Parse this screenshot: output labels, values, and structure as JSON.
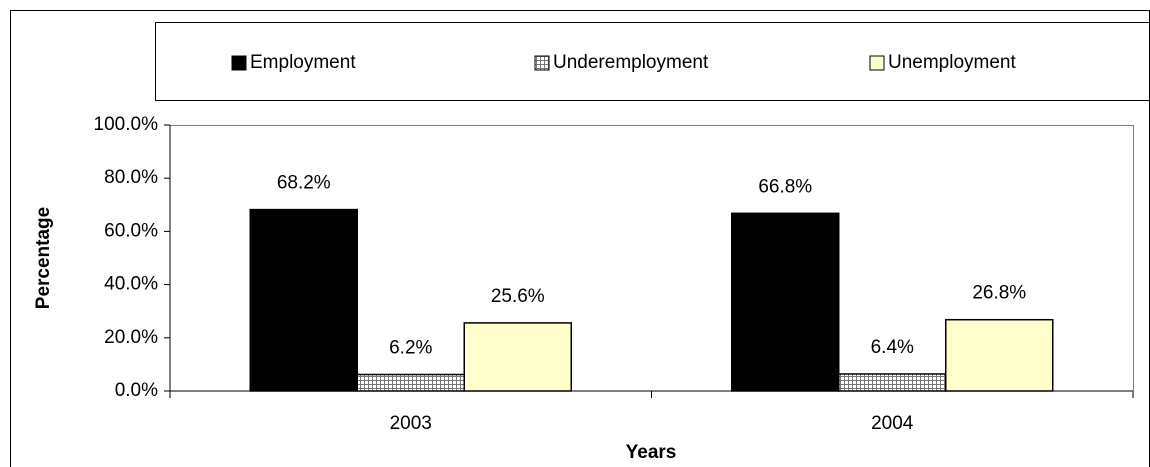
{
  "chart_data": {
    "type": "bar",
    "x_label": "Years",
    "y_label": "Percentage",
    "categories": [
      "2003",
      "2004"
    ],
    "series": [
      {
        "name": "Employment",
        "color": "#000000",
        "values": [
          68.2,
          66.8
        ],
        "value_labels": [
          "68.2%",
          "66.8%"
        ]
      },
      {
        "name": "Underemployment",
        "color": "#ffffff",
        "pattern": "grid",
        "values": [
          6.2,
          6.4
        ],
        "value_labels": [
          "6.2%",
          "6.4%"
        ]
      },
      {
        "name": "Unemployment",
        "color": "#ffffcc",
        "values": [
          25.6,
          26.8
        ],
        "value_labels": [
          "25.6%",
          "26.8%"
        ]
      }
    ],
    "ylim": [
      0,
      100
    ],
    "yticks": [
      {
        "value": 0,
        "label": "0.0%"
      },
      {
        "value": 20,
        "label": "20.0%"
      },
      {
        "value": 40,
        "label": "40.0%"
      },
      {
        "value": 60,
        "label": "60.0%"
      },
      {
        "value": 80,
        "label": "80.0%"
      },
      {
        "value": 100,
        "label": "100.0%"
      }
    ],
    "legend": "top"
  }
}
